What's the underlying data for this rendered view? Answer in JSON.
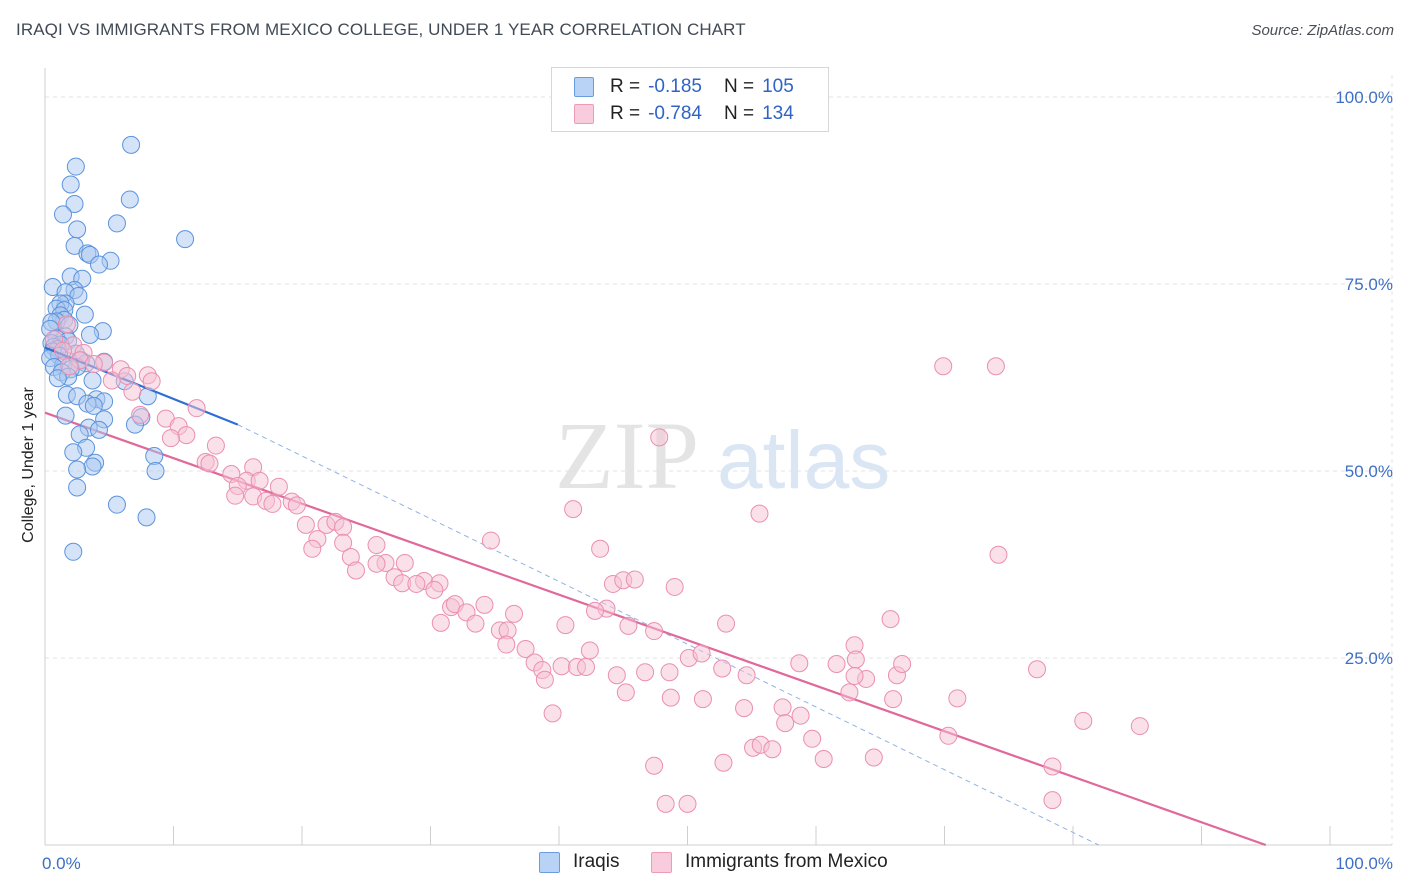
{
  "title": "IRAQI VS IMMIGRANTS FROM MEXICO COLLEGE, UNDER 1 YEAR CORRELATION CHART",
  "source": "Source: ZipAtlas.com",
  "watermark": {
    "zip": "ZIP",
    "atlas": "atlas"
  },
  "legend": {
    "series1": {
      "r_label": "R =",
      "r_value": "-0.185",
      "n_label": "N =",
      "n_value": "105"
    },
    "series2": {
      "r_label": "R =",
      "r_value": "-0.784",
      "n_label": "N =",
      "n_value": "134"
    }
  },
  "bottom_legend": {
    "series1": "Iraqis",
    "series2": "Immigrants from Mexico"
  },
  "colors": {
    "iraqi_fill": "#a9c8f0",
    "iraqi_stroke": "#5b93dd",
    "iraqi_line": "#2f6fd4",
    "mexico_fill": "#f6c2d3",
    "mexico_stroke": "#eb8fb0",
    "mexico_line": "#e0689a",
    "tick_label": "#3d6fc4",
    "grid": "#e3e3e3"
  },
  "chart_data": {
    "type": "scatter",
    "title": "IRAQI VS IMMIGRANTS FROM MEXICO COLLEGE, UNDER 1 YEAR CORRELATION CHART",
    "xlabel": "",
    "ylabel": "College, Under 1 year",
    "xlim": [
      0,
      100
    ],
    "ylim": [
      0,
      100
    ],
    "x_tick_labels": [
      "0.0%",
      "100.0%"
    ],
    "y_ticks": [
      25,
      50,
      75,
      100
    ],
    "y_tick_labels": [
      "25.0%",
      "50.0%",
      "75.0%",
      "100.0%"
    ],
    "grid": true,
    "series": [
      {
        "name": "Iraqis",
        "r": -0.185,
        "n": 105,
        "trend_solid": [
          [
            0,
            66.5
          ],
          [
            15,
            56.2
          ]
        ],
        "trend_dashed": [
          [
            15,
            56.2
          ],
          [
            82,
            0.0
          ]
        ],
        "points": [
          [
            6.7,
            93.6
          ],
          [
            2.4,
            90.7
          ],
          [
            2.0,
            88.3
          ],
          [
            6.6,
            86.3
          ],
          [
            2.3,
            85.7
          ],
          [
            1.4,
            84.3
          ],
          [
            5.6,
            83.1
          ],
          [
            2.5,
            82.3
          ],
          [
            10.9,
            81.0
          ],
          [
            2.3,
            80.1
          ],
          [
            3.3,
            79.1
          ],
          [
            3.5,
            78.9
          ],
          [
            5.1,
            78.1
          ],
          [
            4.2,
            77.6
          ],
          [
            2.0,
            76.0
          ],
          [
            2.9,
            75.7
          ],
          [
            0.6,
            74.6
          ],
          [
            2.3,
            74.2
          ],
          [
            1.6,
            73.9
          ],
          [
            2.6,
            73.4
          ],
          [
            1.6,
            72.4
          ],
          [
            1.2,
            72.4
          ],
          [
            0.9,
            71.7
          ],
          [
            1.5,
            71.5
          ],
          [
            3.1,
            70.9
          ],
          [
            1.2,
            70.8
          ],
          [
            1.5,
            70.2
          ],
          [
            0.9,
            70.0
          ],
          [
            0.5,
            69.9
          ],
          [
            1.9,
            69.5
          ],
          [
            0.4,
            69.0
          ],
          [
            4.5,
            68.7
          ],
          [
            3.5,
            68.2
          ],
          [
            1.6,
            68.0
          ],
          [
            0.9,
            67.7
          ],
          [
            1.8,
            67.4
          ],
          [
            0.5,
            67.1
          ],
          [
            1.2,
            66.9
          ],
          [
            0.7,
            66.6
          ],
          [
            1.0,
            66.3
          ],
          [
            0.6,
            66.0
          ],
          [
            2.4,
            65.7
          ],
          [
            1.1,
            65.4
          ],
          [
            0.4,
            65.1
          ],
          [
            2.8,
            64.8
          ],
          [
            4.6,
            64.6
          ],
          [
            3.2,
            64.4
          ],
          [
            1.4,
            64.1
          ],
          [
            2.5,
            63.9
          ],
          [
            2.0,
            63.6
          ],
          [
            0.7,
            63.9
          ],
          [
            1.3,
            63.2
          ],
          [
            1.8,
            62.6
          ],
          [
            6.2,
            62.0
          ],
          [
            1.0,
            62.4
          ],
          [
            3.7,
            62.1
          ],
          [
            1.7,
            60.2
          ],
          [
            2.5,
            60.0
          ],
          [
            4.0,
            59.6
          ],
          [
            8.0,
            60.0
          ],
          [
            4.6,
            59.3
          ],
          [
            3.3,
            59.0
          ],
          [
            3.8,
            58.7
          ],
          [
            1.6,
            57.4
          ],
          [
            7.5,
            57.2
          ],
          [
            4.6,
            56.9
          ],
          [
            7.0,
            56.2
          ],
          [
            3.4,
            55.8
          ],
          [
            4.2,
            55.5
          ],
          [
            2.7,
            54.9
          ],
          [
            3.2,
            53.1
          ],
          [
            2.2,
            52.5
          ],
          [
            8.5,
            52.0
          ],
          [
            3.9,
            51.1
          ],
          [
            3.7,
            50.6
          ],
          [
            2.5,
            50.2
          ],
          [
            8.6,
            50.0
          ],
          [
            2.5,
            47.8
          ],
          [
            5.6,
            45.5
          ],
          [
            7.9,
            43.8
          ],
          [
            2.2,
            39.2
          ]
        ]
      },
      {
        "name": "Immigrants from Mexico",
        "r": -0.784,
        "n": 134,
        "trend": [
          [
            0,
            57.8
          ],
          [
            95,
            0.0
          ]
        ],
        "points": [
          [
            1.7,
            69.6
          ],
          [
            0.7,
            67.6
          ],
          [
            2.2,
            66.8
          ],
          [
            1.4,
            66.1
          ],
          [
            3.0,
            65.8
          ],
          [
            2.7,
            64.8
          ],
          [
            4.6,
            64.5
          ],
          [
            3.8,
            64.3
          ],
          [
            1.9,
            64.0
          ],
          [
            5.9,
            63.6
          ],
          [
            8.0,
            62.8
          ],
          [
            6.4,
            62.7
          ],
          [
            5.2,
            62.1
          ],
          [
            8.3,
            62.0
          ],
          [
            6.8,
            60.6
          ],
          [
            11.8,
            58.4
          ],
          [
            7.4,
            57.5
          ],
          [
            9.4,
            57.0
          ],
          [
            10.4,
            56.0
          ],
          [
            11.0,
            54.8
          ],
          [
            9.8,
            54.4
          ],
          [
            12.5,
            51.2
          ],
          [
            13.3,
            53.4
          ],
          [
            12.8,
            51.0
          ],
          [
            16.2,
            50.5
          ],
          [
            14.5,
            49.6
          ],
          [
            15.7,
            48.7
          ],
          [
            16.7,
            48.7
          ],
          [
            15.0,
            48.0
          ],
          [
            18.2,
            47.9
          ],
          [
            14.8,
            46.7
          ],
          [
            16.2,
            46.6
          ],
          [
            17.2,
            46.0
          ],
          [
            19.2,
            45.9
          ],
          [
            19.6,
            45.4
          ],
          [
            17.7,
            45.6
          ],
          [
            20.3,
            42.8
          ],
          [
            21.9,
            42.8
          ],
          [
            22.6,
            43.2
          ],
          [
            23.2,
            42.5
          ],
          [
            21.2,
            40.9
          ],
          [
            23.2,
            40.4
          ],
          [
            25.8,
            40.1
          ],
          [
            20.8,
            39.6
          ],
          [
            23.8,
            38.5
          ],
          [
            26.5,
            37.7
          ],
          [
            25.8,
            37.6
          ],
          [
            28.0,
            37.7
          ],
          [
            24.2,
            36.7
          ],
          [
            27.2,
            35.8
          ],
          [
            29.5,
            35.3
          ],
          [
            27.8,
            35.0
          ],
          [
            28.9,
            34.9
          ],
          [
            30.7,
            35.0
          ],
          [
            30.3,
            34.1
          ],
          [
            41.1,
            44.9
          ],
          [
            43.2,
            39.6
          ],
          [
            34.7,
            40.7
          ],
          [
            44.2,
            34.9
          ],
          [
            45.0,
            35.4
          ],
          [
            45.9,
            35.5
          ],
          [
            49.0,
            34.5
          ],
          [
            30.8,
            29.7
          ],
          [
            31.6,
            31.8
          ],
          [
            31.9,
            32.2
          ],
          [
            34.2,
            32.1
          ],
          [
            32.8,
            31.1
          ],
          [
            33.5,
            29.6
          ],
          [
            35.4,
            28.7
          ],
          [
            36.5,
            30.9
          ],
          [
            36.0,
            28.7
          ],
          [
            35.9,
            26.8
          ],
          [
            40.5,
            29.4
          ],
          [
            43.7,
            31.6
          ],
          [
            42.4,
            26.0
          ],
          [
            45.4,
            29.3
          ],
          [
            37.4,
            26.2
          ],
          [
            38.1,
            24.4
          ],
          [
            38.7,
            23.4
          ],
          [
            38.9,
            22.1
          ],
          [
            39.5,
            17.6
          ],
          [
            40.2,
            23.9
          ],
          [
            41.4,
            23.8
          ],
          [
            42.1,
            23.8
          ],
          [
            44.5,
            22.7
          ],
          [
            45.2,
            20.4
          ],
          [
            46.7,
            23.1
          ],
          [
            48.6,
            23.1
          ],
          [
            48.7,
            19.7
          ],
          [
            50.1,
            25.0
          ],
          [
            51.1,
            25.6
          ],
          [
            51.2,
            19.5
          ],
          [
            52.7,
            23.6
          ],
          [
            52.8,
            11.0
          ],
          [
            54.4,
            18.3
          ],
          [
            54.6,
            22.7
          ],
          [
            55.1,
            13.0
          ],
          [
            55.7,
            13.4
          ],
          [
            56.6,
            12.8
          ],
          [
            57.4,
            18.4
          ],
          [
            57.6,
            16.3
          ],
          [
            58.8,
            17.3
          ],
          [
            59.7,
            14.2
          ],
          [
            60.6,
            11.5
          ],
          [
            61.6,
            24.2
          ],
          [
            62.6,
            20.4
          ],
          [
            63.0,
            26.7
          ],
          [
            63.1,
            24.8
          ],
          [
            63.9,
            22.2
          ],
          [
            64.5,
            11.7
          ],
          [
            65.8,
            30.2
          ],
          [
            66.0,
            19.5
          ],
          [
            66.3,
            22.7
          ],
          [
            66.7,
            24.2
          ],
          [
            70.3,
            14.6
          ],
          [
            71.0,
            19.6
          ],
          [
            74.2,
            38.8
          ],
          [
            77.2,
            23.5
          ],
          [
            78.4,
            10.5
          ],
          [
            80.8,
            16.6
          ],
          [
            85.2,
            15.9
          ],
          [
            78.4,
            6.0
          ],
          [
            48.3,
            5.5
          ],
          [
            50.0,
            5.5
          ],
          [
            47.4,
            10.6
          ],
          [
            53.0,
            29.6
          ],
          [
            58.7,
            24.3
          ],
          [
            63.0,
            22.6
          ],
          [
            69.9,
            64.0
          ],
          [
            74.0,
            64.0
          ],
          [
            47.8,
            54.5
          ],
          [
            55.6,
            44.3
          ],
          [
            42.8,
            31.3
          ],
          [
            47.4,
            28.6
          ]
        ]
      }
    ]
  }
}
